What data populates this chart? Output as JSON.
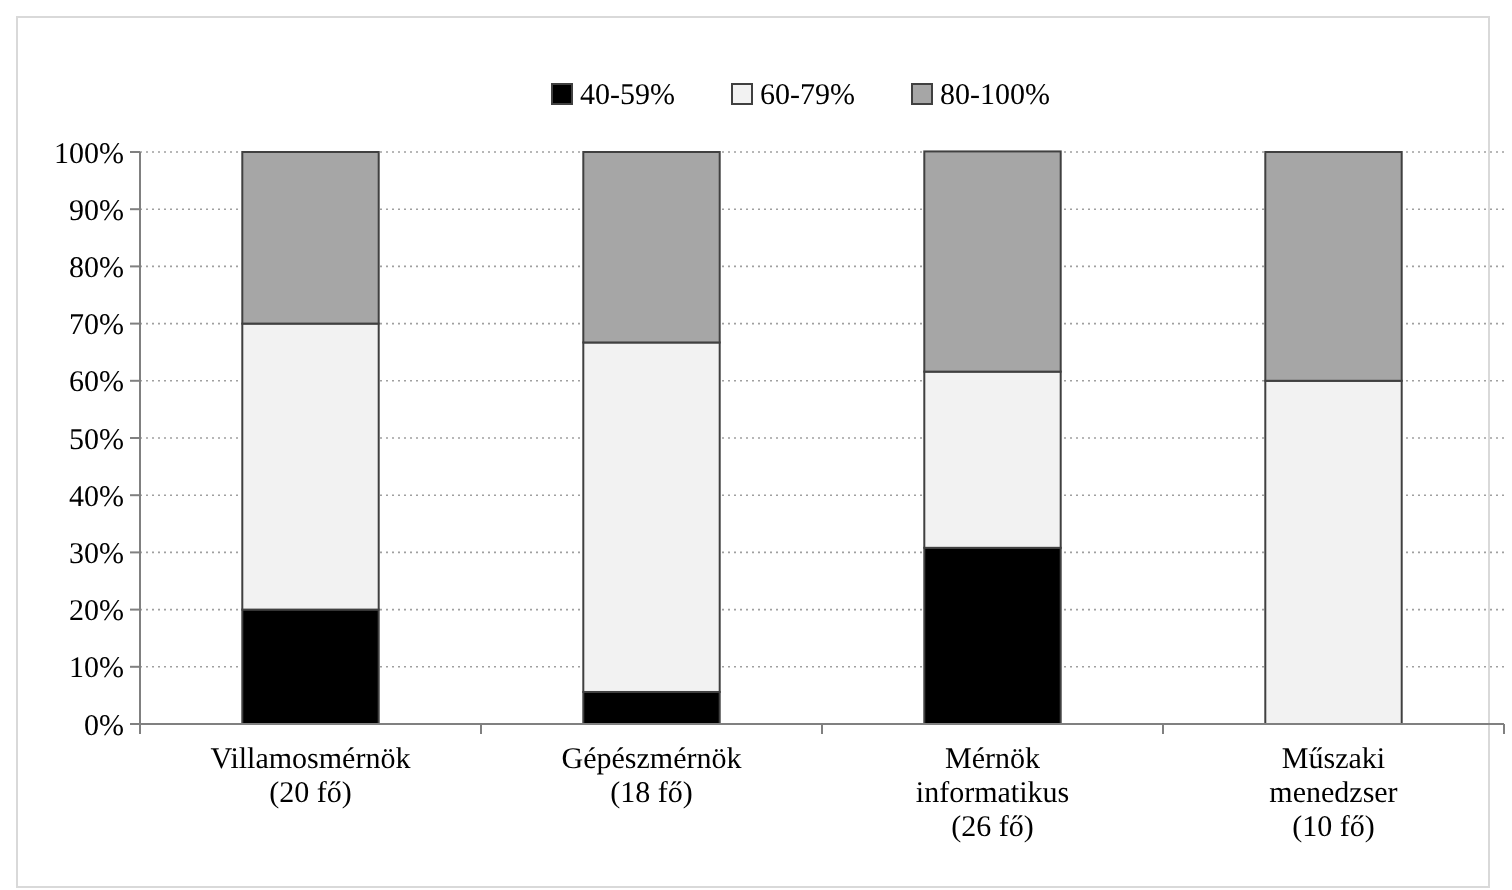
{
  "chart_data": {
    "type": "bar",
    "stacked": true,
    "categories": [
      "Villamosmérnök\n(20 fő)",
      "Gépészmérnök\n(18 fő)",
      "Mérnök\ninformatikus\n(26 fő)",
      "Műszaki\nmenedzser\n(10 fő)"
    ],
    "series": [
      {
        "name": "40-59%",
        "color": "#000000",
        "values": [
          20,
          5.6,
          30.8,
          0
        ]
      },
      {
        "name": "60-79%",
        "color": "#f2f2f2",
        "values": [
          50,
          61.1,
          30.8,
          60
        ]
      },
      {
        "name": "80-100%",
        "color": "#a6a6a6",
        "values": [
          30,
          33.3,
          38.5,
          40
        ]
      }
    ],
    "ylim": [
      0,
      100
    ],
    "yticks": [
      {
        "value": 0,
        "label": "0%"
      },
      {
        "value": 10,
        "label": "10%"
      },
      {
        "value": 20,
        "label": "20%"
      },
      {
        "value": 30,
        "label": "30%"
      },
      {
        "value": 40,
        "label": "40%"
      },
      {
        "value": 50,
        "label": "50%"
      },
      {
        "value": 60,
        "label": "60%"
      },
      {
        "value": 70,
        "label": "70%"
      },
      {
        "value": 80,
        "label": "80%"
      },
      {
        "value": 90,
        "label": "90%"
      },
      {
        "value": 100,
        "label": "100%"
      }
    ],
    "grid": "y",
    "legend": "top"
  }
}
